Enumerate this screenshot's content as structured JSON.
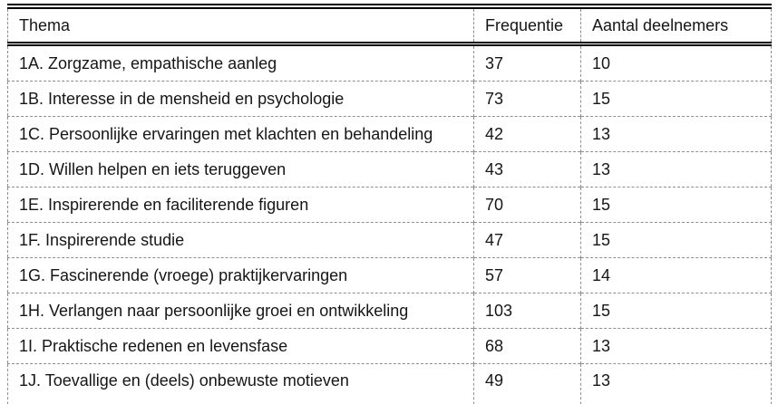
{
  "colors": {
    "text": "#161616",
    "solid_border": "#000000",
    "dashed_grid": "#8f8f8f",
    "background": "#ffffff"
  },
  "table": {
    "columns": [
      {
        "key": "thema",
        "label": "Thema"
      },
      {
        "key": "frequentie",
        "label": "Frequentie"
      },
      {
        "key": "deelnemers",
        "label": "Aantal deelnemers"
      }
    ],
    "rows": [
      {
        "thema": "1A. Zorgzame, empathische aanleg",
        "frequentie": "37",
        "deelnemers": "10"
      },
      {
        "thema": "1B. Interesse in de mensheid en psychologie",
        "frequentie": "73",
        "deelnemers": "15"
      },
      {
        "thema": "1C. Persoonlijke ervaringen met klachten en behandeling",
        "frequentie": "42",
        "deelnemers": "13"
      },
      {
        "thema": "1D. Willen helpen en iets teruggeven",
        "frequentie": "43",
        "deelnemers": "13"
      },
      {
        "thema": "1E. Inspirerende en faciliterende figuren",
        "frequentie": "70",
        "deelnemers": "15"
      },
      {
        "thema": "1F. Inspirerende studie",
        "frequentie": "47",
        "deelnemers": "15"
      },
      {
        "thema": "1G. Fascinerende (vroege) praktijkervaringen",
        "frequentie": "57",
        "deelnemers": "14"
      },
      {
        "thema": "1H. Verlangen naar persoonlijke groei en ontwikkeling",
        "frequentie": "103",
        "deelnemers": "15"
      },
      {
        "thema": "1I. Praktische redenen en levensfase",
        "frequentie": "68",
        "deelnemers": "13"
      },
      {
        "thema": "1J. Toevallige en (deels) onbewuste motieven",
        "frequentie": "49",
        "deelnemers": "13"
      }
    ]
  }
}
